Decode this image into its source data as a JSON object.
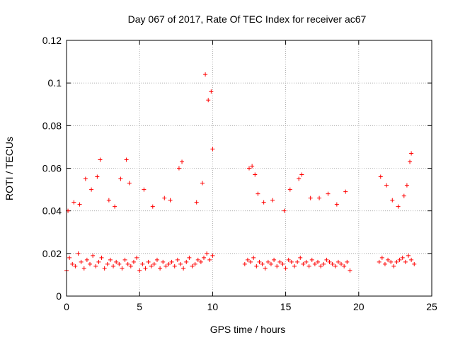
{
  "chart_data": {
    "type": "scatter",
    "title": "Day 067 of 2017, Rate Of TEC Index for receiver ac67",
    "xlabel": "GPS time / hours",
    "ylabel": "ROTI / TECUs",
    "xlim": [
      0,
      25
    ],
    "ylim": [
      0,
      0.12
    ],
    "x_ticks": [
      0,
      5,
      10,
      15,
      20,
      25
    ],
    "y_ticks": [
      0,
      0.02,
      0.04,
      0.06,
      0.08,
      0.1,
      0.12
    ],
    "x_tick_labels": [
      "0",
      "5",
      "10",
      "15",
      "20",
      "25"
    ],
    "y_tick_labels": [
      "0",
      "0.02",
      "0.04",
      "0.06",
      "0.08",
      "0.1",
      "0.12"
    ],
    "grid": true,
    "marker": "+",
    "color": "#ff0000",
    "series": [
      {
        "x": [
          0.0,
          0.2,
          0.4,
          0.6,
          0.8,
          1.0,
          1.2,
          1.4,
          1.6,
          1.8,
          2.0,
          2.2,
          2.4,
          2.6,
          2.8,
          3.0,
          3.2,
          3.4,
          3.6,
          3.8,
          4.0,
          4.2,
          4.4,
          4.6,
          4.8,
          5.0,
          5.2,
          5.4,
          5.6,
          5.8,
          6.0,
          6.2,
          6.4,
          6.6,
          6.8,
          7.0,
          7.2,
          7.4,
          7.6,
          7.8,
          8.0,
          8.2,
          8.4,
          8.6,
          8.8,
          9.0,
          9.2,
          9.4,
          9.6,
          9.8,
          10.0,
          12.2,
          12.4,
          12.6,
          12.8,
          13.0,
          13.2,
          13.4,
          13.6,
          13.8,
          14.0,
          14.2,
          14.4,
          14.6,
          14.8,
          15.0,
          15.2,
          15.4,
          15.6,
          15.8,
          16.0,
          16.2,
          16.4,
          16.6,
          16.8,
          17.0,
          17.2,
          17.4,
          17.6,
          17.8,
          18.0,
          18.2,
          18.4,
          18.6,
          18.8,
          19.0,
          19.2,
          19.4,
          21.4,
          21.6,
          21.8,
          22.0,
          22.2,
          22.4,
          22.6,
          22.8,
          23.0,
          23.2,
          23.4,
          23.6,
          23.8,
          0.1,
          0.5,
          0.9,
          1.3,
          1.7,
          2.1,
          2.3,
          2.9,
          3.3,
          3.7,
          4.1,
          4.3,
          5.3,
          5.9,
          6.7,
          7.1,
          7.7,
          7.9,
          8.9,
          9.3,
          9.5,
          9.7,
          9.9,
          10.0,
          12.5,
          12.7,
          12.9,
          13.1,
          13.5,
          14.1,
          14.9,
          15.3,
          15.9,
          16.1,
          16.7,
          17.3,
          17.9,
          18.5,
          19.1,
          21.5,
          21.9,
          22.3,
          22.7,
          23.1,
          23.3,
          23.5,
          23.6
        ],
        "y": [
          0.012,
          0.018,
          0.015,
          0.014,
          0.02,
          0.016,
          0.013,
          0.017,
          0.015,
          0.019,
          0.014,
          0.016,
          0.018,
          0.013,
          0.015,
          0.017,
          0.014,
          0.016,
          0.015,
          0.013,
          0.017,
          0.015,
          0.014,
          0.016,
          0.018,
          0.012,
          0.015,
          0.013,
          0.016,
          0.014,
          0.015,
          0.017,
          0.013,
          0.016,
          0.014,
          0.015,
          0.016,
          0.014,
          0.017,
          0.015,
          0.013,
          0.016,
          0.018,
          0.014,
          0.015,
          0.017,
          0.016,
          0.018,
          0.02,
          0.017,
          0.019,
          0.015,
          0.017,
          0.016,
          0.018,
          0.014,
          0.016,
          0.015,
          0.013,
          0.016,
          0.015,
          0.017,
          0.014,
          0.016,
          0.015,
          0.013,
          0.017,
          0.016,
          0.014,
          0.016,
          0.018,
          0.015,
          0.016,
          0.014,
          0.017,
          0.015,
          0.016,
          0.014,
          0.015,
          0.017,
          0.016,
          0.015,
          0.014,
          0.016,
          0.015,
          0.014,
          0.016,
          0.012,
          0.016,
          0.018,
          0.015,
          0.017,
          0.016,
          0.014,
          0.016,
          0.017,
          0.018,
          0.016,
          0.019,
          0.017,
          0.015,
          0.04,
          0.044,
          0.043,
          0.055,
          0.05,
          0.056,
          0.064,
          0.045,
          0.042,
          0.055,
          0.064,
          0.053,
          0.05,
          0.042,
          0.046,
          0.045,
          0.06,
          0.063,
          0.044,
          0.053,
          0.104,
          0.092,
          0.096,
          0.069,
          0.06,
          0.061,
          0.057,
          0.048,
          0.044,
          0.045,
          0.04,
          0.05,
          0.055,
          0.057,
          0.046,
          0.046,
          0.048,
          0.043,
          0.049,
          0.056,
          0.052,
          0.045,
          0.042,
          0.047,
          0.052,
          0.063,
          0.067
        ]
      }
    ]
  }
}
